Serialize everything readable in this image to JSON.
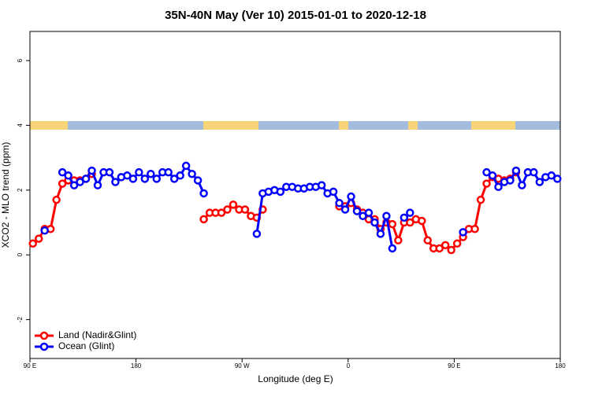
{
  "chart_data": {
    "type": "line",
    "title": "35N-40N May (Ver 10)   2015-01-01 to 2020-12-18",
    "x_label": "Longitude (deg E)",
    "y_label": "XCO2 - MLO trend (ppm)",
    "xlim": [
      90,
      540
    ],
    "ylim": [
      -3.2,
      6.9
    ],
    "xticks": [
      {
        "value": 90,
        "label": "90 E"
      },
      180,
      {
        "value": 270,
        "label": "90 W"
      },
      {
        "value": 360,
        "label": "0"
      },
      {
        "value": 450,
        "label": "90 E"
      },
      {
        "value": 540,
        "label": "180"
      }
    ],
    "yticks": [
      -2,
      0,
      2,
      4,
      6
    ],
    "legend": "bottom-left",
    "x": [
      92.5,
      97.5,
      102.5,
      107.5,
      112.5,
      117.5,
      122.5,
      127.5,
      132.5,
      137.5,
      142.5,
      147.5,
      152.5,
      157.5,
      162.5,
      167.5,
      172.5,
      177.5,
      182.5,
      187.5,
      192.5,
      197.5,
      202.5,
      207.5,
      212.5,
      217.5,
      222.5,
      227.5,
      232.5,
      237.5,
      242.5,
      247.5,
      252.5,
      257.5,
      262.5,
      267.5,
      272.5,
      277.5,
      282.5,
      287.5,
      292.5,
      297.5,
      302.5,
      307.5,
      312.5,
      317.5,
      322.5,
      327.5,
      332.5,
      337.5,
      342.5,
      347.5,
      352.5,
      357.5,
      362.5,
      367.5,
      372.5,
      377.5,
      382.5,
      387.5,
      392.5,
      397.5,
      402.5,
      407.5,
      412.5,
      417.5,
      422.5,
      427.5,
      432.5,
      437.5,
      442.5,
      447.5,
      452.5,
      457.5,
      462.5,
      467.5,
      472.5,
      477.5,
      482.5,
      487.5,
      492.5,
      497.5,
      502.5,
      507.5,
      512.5,
      517.5,
      522.5,
      527.5,
      532.5,
      537.5
    ],
    "series": [
      {
        "name": "Land (Nadir&Glint)",
        "color": "#ff0000",
        "values": [
          0.35,
          0.5,
          0.8,
          0.8,
          1.7,
          2.2,
          2.3,
          2.3,
          2.3,
          2.35,
          2.5,
          null,
          null,
          null,
          null,
          null,
          null,
          null,
          null,
          null,
          null,
          null,
          null,
          null,
          null,
          null,
          null,
          null,
          null,
          1.1,
          1.3,
          1.3,
          1.3,
          1.4,
          1.55,
          1.4,
          1.4,
          1.2,
          1.15,
          1.4,
          null,
          null,
          null,
          null,
          null,
          null,
          null,
          null,
          null,
          null,
          null,
          null,
          1.5,
          1.5,
          1.6,
          1.4,
          1.3,
          1.1,
          1.1,
          0.8,
          1.0,
          0.95,
          0.45,
          1.0,
          1.0,
          1.1,
          1.05,
          0.45,
          0.2,
          0.2,
          0.3,
          0.15,
          0.35,
          0.55,
          0.8,
          0.8,
          1.7,
          2.2,
          2.4,
          2.35,
          2.3,
          2.35,
          2.55,
          null,
          null,
          null,
          null,
          null,
          null,
          null
        ]
      },
      {
        "name": "Ocean (Glint)",
        "color": "#0000ff",
        "values": [
          null,
          null,
          0.75,
          null,
          null,
          2.55,
          2.45,
          2.15,
          2.25,
          2.35,
          2.6,
          2.15,
          2.55,
          2.55,
          2.25,
          2.4,
          2.45,
          2.35,
          2.55,
          2.35,
          2.5,
          2.35,
          2.55,
          2.55,
          2.35,
          2.45,
          2.75,
          2.5,
          2.3,
          1.9,
          null,
          null,
          null,
          null,
          null,
          null,
          null,
          null,
          0.65,
          1.9,
          1.95,
          2.0,
          1.95,
          2.1,
          2.1,
          2.05,
          2.05,
          2.1,
          2.1,
          2.15,
          1.9,
          1.95,
          1.6,
          1.4,
          1.8,
          1.35,
          1.2,
          1.3,
          1.0,
          0.65,
          1.2,
          0.2,
          null,
          1.15,
          1.3,
          null,
          null,
          null,
          null,
          null,
          null,
          null,
          null,
          0.7,
          null,
          null,
          null,
          2.55,
          2.45,
          2.1,
          2.25,
          2.3,
          2.6,
          2.15,
          2.55,
          2.55,
          2.25,
          2.4,
          2.45,
          2.35
        ]
      }
    ]
  }
}
